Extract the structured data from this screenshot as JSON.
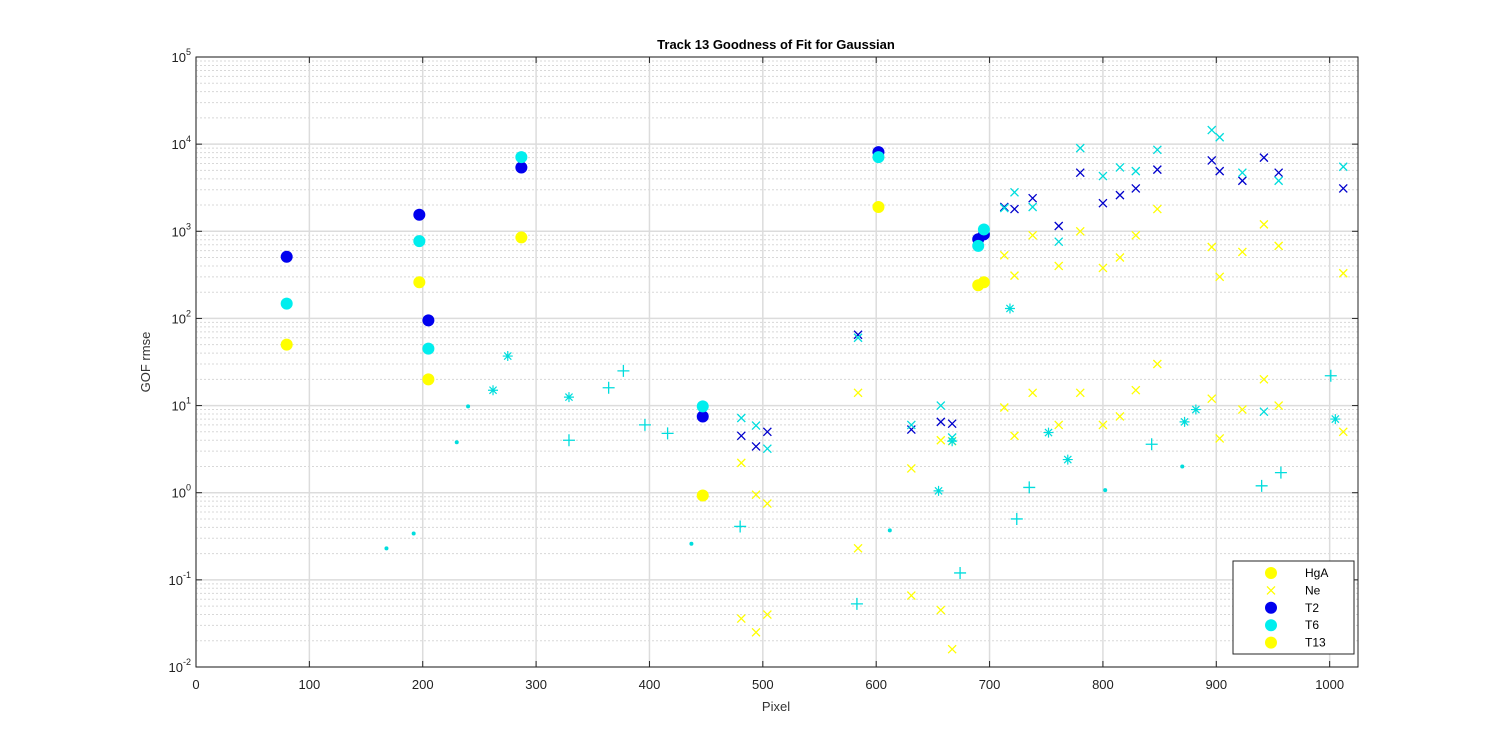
{
  "chart_data": {
    "type": "scatter",
    "title": "Track 13  Goodness of Fit for Gaussian",
    "xlabel": "Pixel",
    "ylabel": "GOF rmse",
    "xlim": [
      0,
      1025
    ],
    "ylim": [
      0.01,
      100000
    ],
    "yscale": "log",
    "grid": true,
    "minor_grid": true,
    "legend_position": "bottom-right",
    "xticks": [
      "0",
      "100",
      "200",
      "300",
      "400",
      "500",
      "600",
      "700",
      "800",
      "900",
      "1000"
    ],
    "ytick_base": "10",
    "ytick_exponents": [
      "-2",
      "-1",
      "0",
      "1",
      "2",
      "3",
      "4",
      "5"
    ],
    "legend": [
      {
        "label": "HgA",
        "color": "#ffff00",
        "marker": "dot"
      },
      {
        "label": "Ne",
        "color": "#ffff00",
        "marker": "x"
      },
      {
        "label": "T2",
        "color": "#0000ee",
        "marker": "dot"
      },
      {
        "label": "T6",
        "color": "#00eeee",
        "marker": "dot"
      },
      {
        "label": "T13",
        "color": "#ffff00",
        "marker": "dot"
      }
    ],
    "series": [
      {
        "name": "HgA",
        "marker": "dot",
        "color": "#ffff00",
        "points": [
          [
            80,
            50
          ],
          [
            197,
            260
          ],
          [
            205,
            20
          ],
          [
            287,
            850
          ],
          [
            447,
            0.93
          ],
          [
            602,
            1900
          ],
          [
            690,
            240
          ],
          [
            695,
            260
          ]
        ]
      },
      {
        "name": "Ne",
        "marker": "x",
        "color": "#ffff00",
        "points": [
          [
            481,
            2.2
          ],
          [
            481,
            0.036
          ],
          [
            494,
            0.95
          ],
          [
            494,
            0.025
          ],
          [
            504,
            0.75
          ],
          [
            504,
            0.04
          ],
          [
            584,
            14
          ],
          [
            584,
            0.23
          ],
          [
            631,
            1.9
          ],
          [
            631,
            0.066
          ],
          [
            657,
            4.0
          ],
          [
            657,
            0.045
          ],
          [
            667,
            3.9
          ],
          [
            667,
            0.016
          ],
          [
            713,
            530
          ],
          [
            713,
            9.5
          ],
          [
            722,
            310
          ],
          [
            722,
            4.5
          ],
          [
            738,
            900
          ],
          [
            738,
            14
          ],
          [
            761,
            400
          ],
          [
            761,
            6.0
          ],
          [
            780,
            1000
          ],
          [
            780,
            14
          ],
          [
            800,
            380
          ],
          [
            800,
            6.0
          ],
          [
            815,
            500
          ],
          [
            815,
            7.5
          ],
          [
            829,
            900
          ],
          [
            829,
            15
          ],
          [
            848,
            1800
          ],
          [
            848,
            30
          ],
          [
            896,
            660
          ],
          [
            896,
            12
          ],
          [
            903,
            300
          ],
          [
            903,
            4.2
          ],
          [
            923,
            580
          ],
          [
            923,
            9.0
          ],
          [
            942,
            1200
          ],
          [
            942,
            20
          ],
          [
            955,
            680
          ],
          [
            955,
            10
          ],
          [
            1012,
            330
          ],
          [
            1012,
            5.0
          ]
        ]
      },
      {
        "name": "T2",
        "marker": "dot",
        "color": "#0000ee",
        "points": [
          [
            80,
            510
          ],
          [
            197,
            1550
          ],
          [
            205,
            95
          ],
          [
            287,
            5400
          ],
          [
            447,
            7.5
          ],
          [
            602,
            8100
          ],
          [
            690,
            810
          ],
          [
            695,
            920
          ]
        ]
      },
      {
        "name": "T6",
        "marker": "dot",
        "color": "#00eeee",
        "points": [
          [
            80,
            148
          ],
          [
            197,
            770
          ],
          [
            205,
            45
          ],
          [
            287,
            7100
          ],
          [
            447,
            9.8
          ],
          [
            602,
            7100
          ],
          [
            690,
            680
          ],
          [
            695,
            1050
          ]
        ]
      },
      {
        "name": "T13",
        "marker": "dot",
        "color": "#ffff00",
        "points": []
      },
      {
        "name": "",
        "marker": "x",
        "color": "#0000cc",
        "points": [
          [
            481,
            4.5
          ],
          [
            494,
            3.4
          ],
          [
            504,
            5.0
          ],
          [
            584,
            65
          ],
          [
            631,
            5.3
          ],
          [
            657,
            6.5
          ],
          [
            667,
            6.2
          ],
          [
            713,
            1900
          ],
          [
            722,
            1800
          ],
          [
            738,
            2400
          ],
          [
            761,
            1150
          ],
          [
            780,
            4700
          ],
          [
            800,
            2100
          ],
          [
            815,
            2600
          ],
          [
            829,
            3100
          ],
          [
            848,
            5100
          ],
          [
            896,
            6500
          ],
          [
            903,
            4900
          ],
          [
            923,
            3800
          ],
          [
            942,
            7000
          ],
          [
            955,
            4700
          ],
          [
            1012,
            3100
          ]
        ]
      },
      {
        "name": "",
        "marker": "x",
        "color": "#00dddd",
        "points": [
          [
            481,
            7.2
          ],
          [
            494,
            5.9
          ],
          [
            504,
            3.2
          ],
          [
            584,
            60
          ],
          [
            631,
            6.0
          ],
          [
            657,
            10
          ],
          [
            667,
            4.3
          ],
          [
            713,
            1850
          ],
          [
            722,
            2800
          ],
          [
            738,
            1900
          ],
          [
            761,
            760
          ],
          [
            780,
            9000
          ],
          [
            800,
            4300
          ],
          [
            815,
            5400
          ],
          [
            829,
            4900
          ],
          [
            848,
            8600
          ],
          [
            896,
            14500
          ],
          [
            903,
            12000
          ],
          [
            923,
            4700
          ],
          [
            942,
            8.5
          ],
          [
            955,
            3800
          ],
          [
            1012,
            5500
          ]
        ]
      },
      {
        "name": "",
        "marker": "star",
        "color": "#00dddd",
        "points": [
          [
            262,
            15
          ],
          [
            275,
            37
          ],
          [
            329,
            12.5
          ],
          [
            655,
            1.05
          ],
          [
            667,
            3.9
          ],
          [
            718,
            130
          ],
          [
            752,
            4.9
          ],
          [
            769,
            2.4
          ],
          [
            872,
            6.5
          ],
          [
            882,
            9.0
          ],
          [
            1005,
            7.0
          ]
        ]
      },
      {
        "name": "",
        "marker": "plus",
        "color": "#00dddd",
        "points": [
          [
            329,
            4.0
          ],
          [
            364,
            16
          ],
          [
            377,
            25
          ],
          [
            396,
            6.0
          ],
          [
            416,
            4.8
          ],
          [
            480,
            0.41
          ],
          [
            583,
            0.053
          ],
          [
            674,
            0.12
          ],
          [
            724,
            0.5
          ],
          [
            735,
            1.15
          ],
          [
            843,
            3.6
          ],
          [
            940,
            1.2
          ],
          [
            957,
            1.7
          ],
          [
            1001,
            22
          ]
        ]
      },
      {
        "name": "",
        "marker": "point",
        "color": "#00dddd",
        "points": [
          [
            168,
            0.23
          ],
          [
            192,
            0.34
          ],
          [
            230,
            3.8
          ],
          [
            240,
            9.8
          ],
          [
            437,
            0.26
          ],
          [
            612,
            0.37
          ],
          [
            802,
            1.07
          ],
          [
            870,
            2.0
          ]
        ]
      }
    ]
  }
}
